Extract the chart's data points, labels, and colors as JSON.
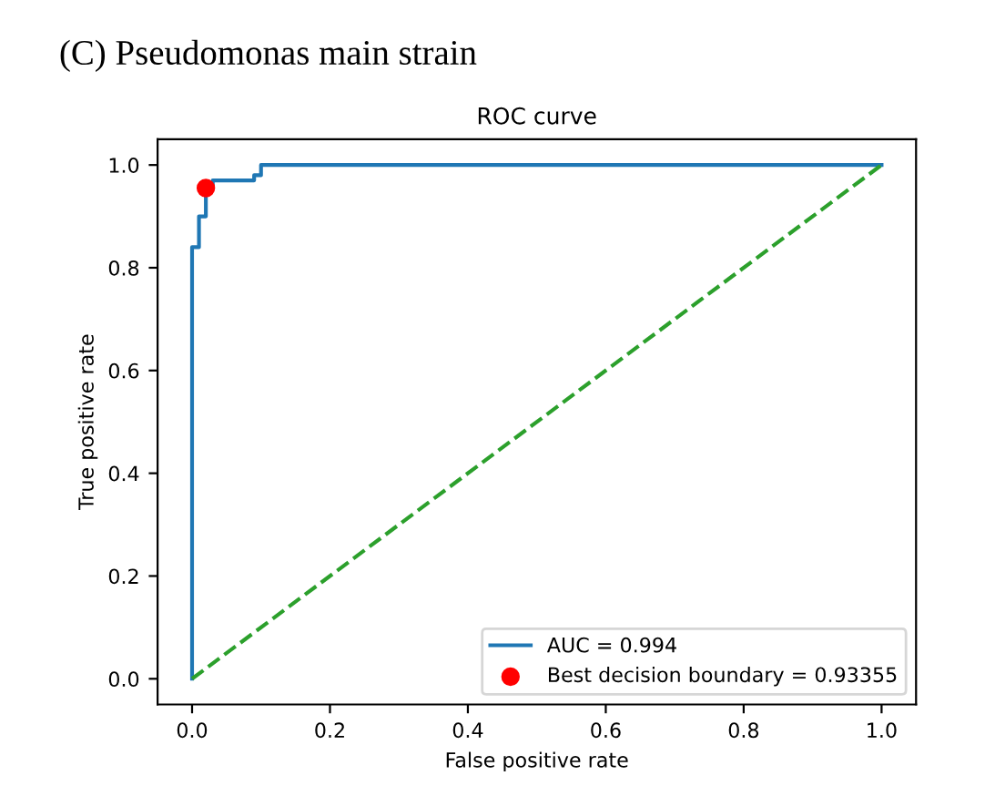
{
  "chart_data": {
    "type": "line",
    "title": "ROC curve",
    "xlabel": "False positive rate",
    "ylabel": "True positive rate",
    "annotations": [
      "(C) Pseudomonas main strain"
    ],
    "series": [
      {
        "name": "AUC = 0.994",
        "color": "#1f77b4",
        "line_style": "solid",
        "marker": "none",
        "x": [
          0,
          0,
          0.01,
          0.01,
          0.02,
          0.02,
          0.03,
          0.03,
          0.09,
          0.09,
          0.1,
          0.1,
          1
        ],
        "values": [
          0,
          0.84,
          0.84,
          0.9,
          0.9,
          0.96,
          0.96,
          0.97,
          0.97,
          0.98,
          0.98,
          1,
          1
        ]
      },
      {
        "color": "#2ca02c",
        "line_style": "dashed",
        "marker": "none",
        "x": [
          0,
          1
        ],
        "values": [
          0,
          1
        ]
      },
      {
        "type": "scatter",
        "name": "Best decision boundary = 0.93355",
        "color": "#ff0000",
        "marker": "circle",
        "x": [
          0.02
        ],
        "values": [
          0.955
        ]
      }
    ],
    "xlim": [
      -0.05,
      1.05
    ],
    "ylim": [
      -0.05,
      1.05
    ],
    "xticks": [
      {
        "value": 0,
        "label": "0.0"
      },
      0.2,
      0.4,
      0.6,
      0.8,
      {
        "value": 1,
        "label": "1.0"
      }
    ],
    "yticks": [
      {
        "value": 0,
        "label": "0.0"
      },
      0.2,
      0.4,
      0.6,
      0.8,
      {
        "value": 1,
        "label": "1.0"
      }
    ],
    "grid": false,
    "legend": "bottom right"
  }
}
